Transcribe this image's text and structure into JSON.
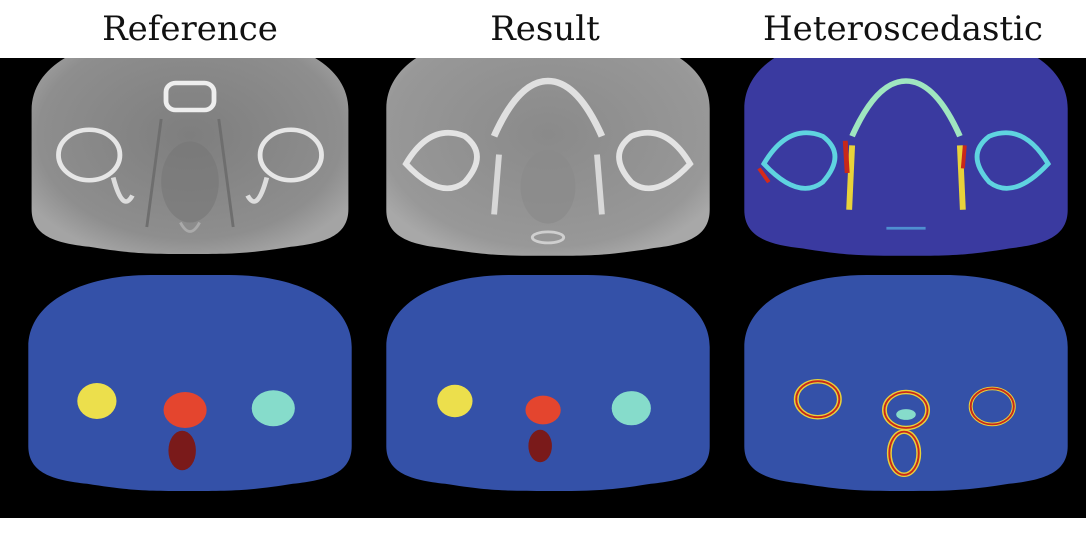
{
  "columns": [
    {
      "title": "Reference"
    },
    {
      "title": "Result"
    },
    {
      "title": "Heteroscedastic"
    }
  ],
  "colors": {
    "background": "#000000",
    "ct_body": "#8c8c8c",
    "bone": "#e8e8e8",
    "seg_body": "#3451a8",
    "label_yellow": "#ecdf4c",
    "label_red": "#e4452e",
    "label_cyan": "#86dccb",
    "label_darkred": "#7a1a1a",
    "uncertainty_low": "#3a3aa0",
    "uncertainty_high": "#d42a1a"
  }
}
